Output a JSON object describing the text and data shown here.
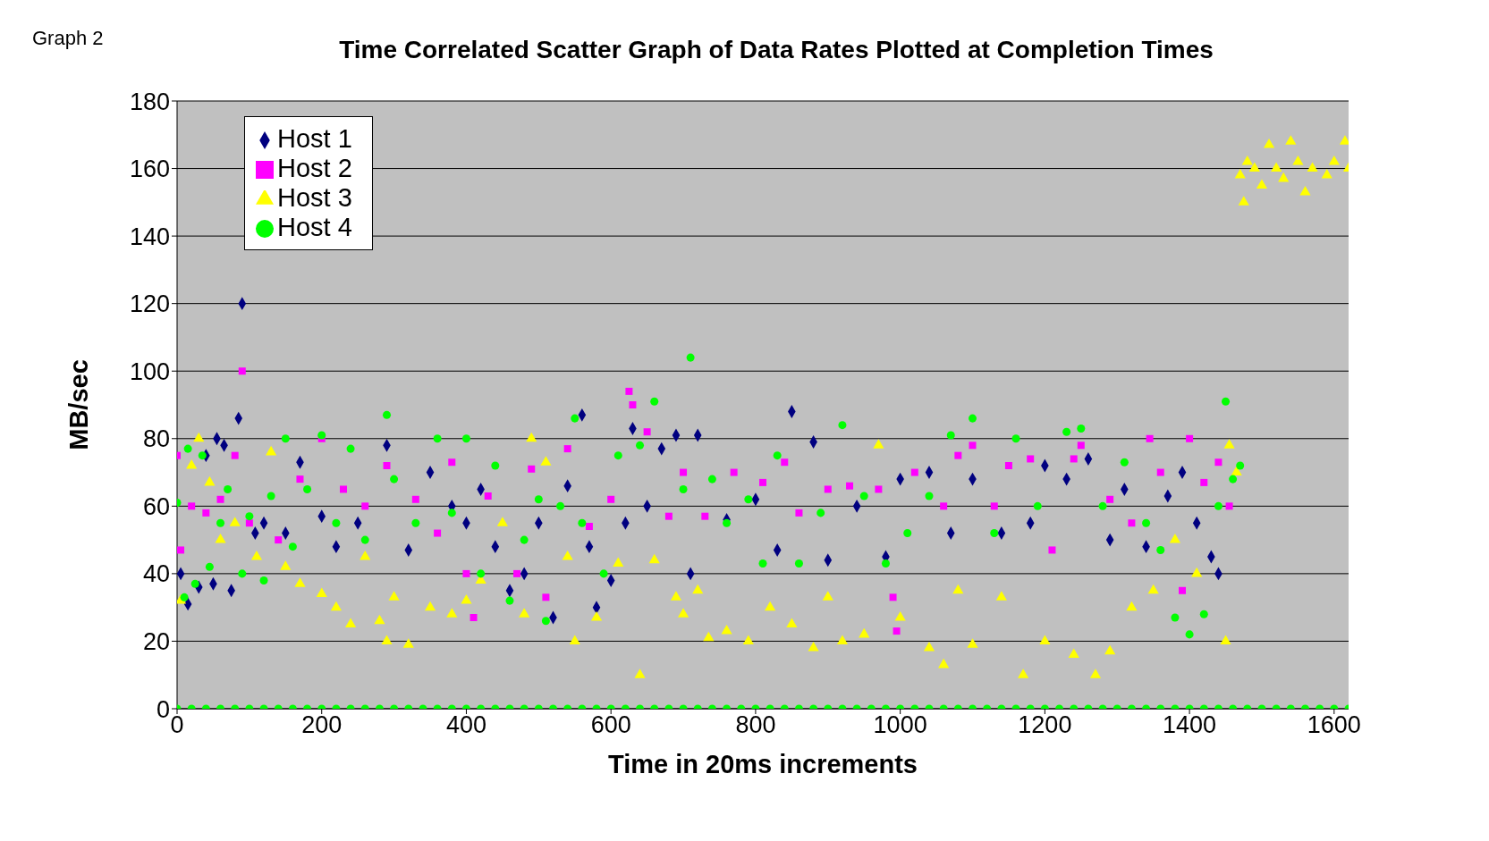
{
  "chart_data": {
    "type": "scatter",
    "title": "Time Correlated Scatter Graph of Data Rates Plotted at Completion Times",
    "xlabel": "Time in 20ms increments",
    "ylabel": "MB/sec",
    "annotations": [
      "Graph 2"
    ],
    "xlim": [
      0,
      1620
    ],
    "xticks": [
      0,
      200,
      400,
      600,
      800,
      1000,
      1200,
      1400,
      1600
    ],
    "ylim": [
      0,
      180
    ],
    "yticks": [
      0,
      20,
      40,
      60,
      80,
      100,
      120,
      140,
      160,
      180
    ],
    "grid": "y",
    "legend": "top left",
    "series": [
      {
        "name": "Host 1",
        "color": "#000080",
        "marker": "diamond",
        "x": [
          5,
          15,
          30,
          40,
          50,
          55,
          65,
          75,
          85,
          90,
          108,
          120,
          150,
          170,
          200,
          220,
          250,
          290,
          320,
          350,
          380,
          400,
          420,
          440,
          460,
          480,
          500,
          520,
          540,
          560,
          570,
          580,
          600,
          620,
          630,
          650,
          670,
          690,
          710,
          720,
          760,
          800,
          830,
          850,
          880,
          900,
          940,
          980,
          1000,
          1040,
          1070,
          1100,
          1140,
          1180,
          1200,
          1230,
          1260,
          1290,
          1310,
          1340,
          1370,
          1390,
          1410,
          1430,
          1440
        ],
        "values": [
          40,
          31,
          36,
          75,
          37,
          80,
          78,
          35,
          86,
          120,
          52,
          55,
          52,
          73,
          57,
          48,
          55,
          78,
          47,
          70,
          60,
          55,
          65,
          48,
          35,
          40,
          55,
          27,
          66,
          87,
          48,
          30,
          38,
          55,
          83,
          60,
          77,
          81,
          40,
          81,
          56,
          62,
          47,
          88,
          79,
          44,
          60,
          45,
          68,
          70,
          52,
          68,
          52,
          55,
          72,
          68,
          74,
          50,
          65,
          48,
          63,
          70,
          55,
          45,
          40
        ]
      },
      {
        "name": "Host 2",
        "color": "#ff00ff",
        "marker": "square",
        "x": [
          0,
          5,
          20,
          40,
          60,
          80,
          90,
          100,
          140,
          170,
          200,
          230,
          260,
          290,
          330,
          360,
          380,
          400,
          410,
          430,
          470,
          490,
          510,
          540,
          570,
          600,
          625,
          630,
          650,
          680,
          700,
          730,
          770,
          810,
          840,
          860,
          900,
          930,
          970,
          990,
          995,
          1020,
          1060,
          1080,
          1100,
          1130,
          1150,
          1180,
          1210,
          1240,
          1250,
          1290,
          1320,
          1345,
          1360,
          1390,
          1400,
          1420,
          1440,
          1455
        ],
        "values": [
          75,
          47,
          60,
          58,
          62,
          75,
          100,
          55,
          50,
          68,
          80,
          65,
          60,
          72,
          62,
          52,
          73,
          40,
          27,
          63,
          40,
          71,
          33,
          77,
          54,
          62,
          94,
          90,
          82,
          57,
          70,
          57,
          70,
          67,
          73,
          58,
          65,
          66,
          65,
          33,
          23,
          70,
          60,
          75,
          78,
          60,
          72,
          74,
          47,
          74,
          78,
          62,
          55,
          80,
          70,
          35,
          80,
          67,
          73,
          60
        ]
      },
      {
        "name": "Host 3",
        "color": "#ffff00",
        "marker": "triangle",
        "x": [
          5,
          20,
          30,
          45,
          60,
          80,
          110,
          130,
          150,
          170,
          200,
          220,
          240,
          260,
          280,
          290,
          300,
          320,
          350,
          380,
          400,
          420,
          450,
          480,
          490,
          510,
          540,
          550,
          580,
          610,
          640,
          660,
          690,
          700,
          720,
          735,
          760,
          790,
          820,
          850,
          880,
          900,
          920,
          950,
          970,
          1000,
          1040,
          1060,
          1080,
          1100,
          1140,
          1170,
          1200,
          1240,
          1270,
          1290,
          1320,
          1350,
          1380,
          1410,
          1450,
          1455,
          1465,
          1470,
          1475,
          1480,
          1490,
          1500,
          1510,
          1520,
          1530,
          1540,
          1550,
          1560,
          1570,
          1590,
          1600,
          1615,
          1620
        ],
        "values": [
          32,
          72,
          80,
          67,
          50,
          55,
          45,
          76,
          42,
          37,
          34,
          30,
          25,
          45,
          26,
          20,
          33,
          19,
          30,
          28,
          32,
          38,
          55,
          28,
          80,
          73,
          45,
          20,
          27,
          43,
          10,
          44,
          33,
          28,
          35,
          21,
          23,
          20,
          30,
          25,
          18,
          33,
          20,
          22,
          78,
          27,
          18,
          13,
          35,
          19,
          33,
          10,
          20,
          16,
          10,
          17,
          30,
          35,
          50,
          40,
          20,
          78,
          70,
          158,
          150,
          162,
          160,
          155,
          167,
          160,
          157,
          168,
          162,
          153,
          160,
          158,
          162,
          168,
          160
        ]
      },
      {
        "name": "Host 4",
        "color": "#00ff00",
        "marker": "circle",
        "x": [
          0,
          10,
          15,
          25,
          35,
          45,
          60,
          70,
          90,
          100,
          120,
          130,
          150,
          160,
          180,
          200,
          220,
          240,
          260,
          290,
          300,
          330,
          360,
          380,
          400,
          420,
          440,
          460,
          480,
          500,
          510,
          530,
          550,
          560,
          590,
          610,
          640,
          660,
          700,
          710,
          740,
          760,
          790,
          810,
          830,
          860,
          890,
          920,
          950,
          980,
          1010,
          1040,
          1070,
          1100,
          1130,
          1160,
          1190,
          1230,
          1250,
          1280,
          1310,
          1340,
          1360,
          1380,
          1400,
          1420,
          1440,
          1450,
          1460,
          1470,
          0,
          20,
          40,
          60,
          80,
          100,
          120,
          140,
          160,
          180,
          200,
          220,
          240,
          260,
          280,
          300,
          320,
          340,
          360,
          380,
          400,
          420,
          440,
          460,
          480,
          500,
          520,
          540,
          560,
          580,
          600,
          620,
          640,
          660,
          680,
          700,
          720,
          740,
          760,
          780,
          800,
          820,
          840,
          860,
          880,
          900,
          920,
          940,
          960,
          980,
          1000,
          1020,
          1040,
          1060,
          1080,
          1100,
          1120,
          1140,
          1160,
          1180,
          1200,
          1220,
          1240,
          1260,
          1280,
          1300,
          1320,
          1340,
          1360,
          1380,
          1400,
          1420,
          1440,
          1460,
          1480,
          1500,
          1520,
          1540,
          1560,
          1580,
          1600,
          1620
        ],
        "values": [
          61,
          33,
          77,
          37,
          75,
          42,
          55,
          65,
          40,
          57,
          38,
          63,
          80,
          48,
          65,
          81,
          55,
          77,
          50,
          87,
          68,
          55,
          80,
          58,
          80,
          40,
          72,
          32,
          50,
          62,
          26,
          60,
          86,
          55,
          40,
          75,
          78,
          91,
          65,
          104,
          68,
          55,
          62,
          43,
          75,
          43,
          58,
          84,
          63,
          43,
          52,
          63,
          81,
          86,
          52,
          80,
          60,
          82,
          83,
          60,
          73,
          55,
          47,
          27,
          22,
          28,
          60,
          91,
          68,
          72,
          0,
          0,
          0,
          0,
          0,
          0,
          0,
          0,
          0,
          0,
          0,
          0,
          0,
          0,
          0,
          0,
          0,
          0,
          0,
          0,
          0,
          0,
          0,
          0,
          0,
          0,
          0,
          0,
          0,
          0,
          0,
          0,
          0,
          0,
          0,
          0,
          0,
          0,
          0,
          0,
          0,
          0,
          0,
          0,
          0,
          0,
          0,
          0,
          0,
          0,
          0,
          0,
          0,
          0,
          0,
          0,
          0,
          0,
          0,
          0,
          0,
          0,
          0,
          0,
          0,
          0,
          0,
          0,
          0,
          0,
          0,
          0,
          0,
          0,
          0,
          0,
          0,
          0,
          0,
          0,
          0,
          0
        ]
      }
    ]
  }
}
